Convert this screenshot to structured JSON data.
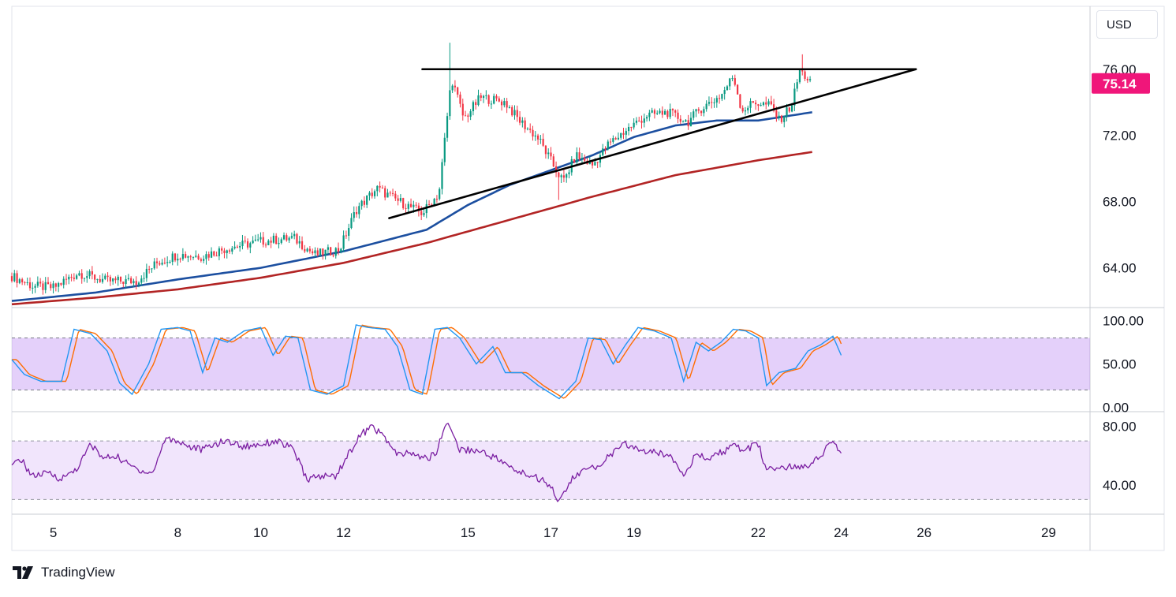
{
  "currency": "USD",
  "brand": "TradingView",
  "colors": {
    "up_candle": "#089981",
    "down_candle": "#f23645",
    "ema_fast": "#1c4fa0",
    "ema_slow": "#b22424",
    "trendline": "#000000",
    "last_price": "#f0167a",
    "stoch_k": "#2196f3",
    "stoch_d": "#ff6d00",
    "rsi": "#7b1fa2",
    "band_stoch": "rgba(170,110,240,0.32)",
    "band_rsi": "rgba(210,170,245,0.30)"
  },
  "chart_data": {
    "type": "candlestick",
    "instrument_currency": "USD",
    "last_price": "75.14",
    "x_ticks": [
      "5",
      "8",
      "10",
      "12",
      "15",
      "17",
      "19",
      "22",
      "24",
      "26",
      "29"
    ],
    "x_tick_days": [
      5,
      8,
      10,
      12,
      15,
      17,
      19,
      22,
      24,
      26,
      29
    ],
    "x_range_days": [
      4.0,
      30.0
    ],
    "price_axis": {
      "ticks": [
        "76.00",
        "72.00",
        "68.00",
        "64.00"
      ],
      "tick_values": [
        76,
        72,
        68,
        64
      ],
      "range": [
        61.6,
        79.8
      ]
    },
    "price_anchors": [
      [
        4.0,
        63.5
      ],
      [
        4.5,
        62.9
      ],
      [
        5.0,
        62.8
      ],
      [
        5.6,
        63.7
      ],
      [
        6.3,
        63.2
      ],
      [
        7.0,
        63.2
      ],
      [
        7.5,
        64.3
      ],
      [
        8.0,
        64.8
      ],
      [
        8.6,
        64.7
      ],
      [
        9.2,
        65.2
      ],
      [
        10.0,
        65.6
      ],
      [
        10.8,
        65.8
      ],
      [
        11.3,
        64.8
      ],
      [
        11.9,
        65.1
      ],
      [
        12.3,
        67.5
      ],
      [
        12.8,
        68.8
      ],
      [
        13.2,
        68.2
      ],
      [
        13.9,
        67.3
      ],
      [
        14.3,
        68.5
      ],
      [
        14.6,
        75.5
      ],
      [
        14.9,
        73.0
      ],
      [
        15.3,
        74.3
      ],
      [
        15.9,
        74.0
      ],
      [
        16.2,
        73.0
      ],
      [
        16.7,
        71.8
      ],
      [
        17.1,
        70.0
      ],
      [
        17.3,
        69.2
      ],
      [
        17.6,
        70.8
      ],
      [
        18.0,
        70.2
      ],
      [
        18.4,
        71.5
      ],
      [
        18.8,
        72.3
      ],
      [
        19.3,
        73.2
      ],
      [
        19.8,
        73.4
      ],
      [
        20.3,
        72.8
      ],
      [
        20.6,
        73.6
      ],
      [
        21.1,
        74.4
      ],
      [
        21.4,
        75.6
      ],
      [
        21.6,
        73.5
      ],
      [
        21.9,
        74.0
      ],
      [
        22.3,
        73.8
      ],
      [
        22.5,
        72.9
      ],
      [
        22.8,
        73.8
      ],
      [
        23.0,
        75.9
      ],
      [
        23.3,
        75.14
      ]
    ],
    "spikes": [
      [
        14.55,
        77.6
      ],
      [
        17.2,
        68.1
      ],
      [
        23.05,
        76.9
      ]
    ],
    "ema_fast": [
      [
        4.0,
        62.0
      ],
      [
        6.0,
        62.5
      ],
      [
        8.0,
        63.3
      ],
      [
        10.0,
        64.0
      ],
      [
        12.0,
        65.0
      ],
      [
        14.0,
        66.3
      ],
      [
        15.0,
        67.8
      ],
      [
        16.0,
        69.0
      ],
      [
        17.0,
        69.9
      ],
      [
        18.0,
        70.8
      ],
      [
        19.0,
        71.9
      ],
      [
        20.0,
        72.6
      ],
      [
        21.0,
        72.9
      ],
      [
        22.0,
        72.9
      ],
      [
        23.3,
        73.4
      ]
    ],
    "ema_slow": [
      [
        4.0,
        61.8
      ],
      [
        6.0,
        62.2
      ],
      [
        8.0,
        62.7
      ],
      [
        10.0,
        63.4
      ],
      [
        12.0,
        64.3
      ],
      [
        14.0,
        65.5
      ],
      [
        16.0,
        66.9
      ],
      [
        18.0,
        68.3
      ],
      [
        20.0,
        69.6
      ],
      [
        22.0,
        70.5
      ],
      [
        23.3,
        71.0
      ]
    ],
    "trendlines": [
      {
        "name": "resistance",
        "from": [
          13.9,
          76.0
        ],
        "to": [
          25.8,
          76.0
        ]
      },
      {
        "name": "support",
        "from": [
          13.1,
          67.0
        ],
        "to": [
          25.8,
          76.0
        ]
      }
    ],
    "stochastic": {
      "axis_ticks": [
        "100.00",
        "50.00",
        "0.00"
      ],
      "axis_values": [
        100,
        50,
        0
      ],
      "band": [
        20,
        80
      ],
      "range": [
        -5,
        115
      ],
      "k_anchors": [
        [
          4.0,
          55
        ],
        [
          4.3,
          38
        ],
        [
          4.7,
          30
        ],
        [
          5.2,
          30
        ],
        [
          5.5,
          90
        ],
        [
          5.9,
          85
        ],
        [
          6.3,
          65
        ],
        [
          6.6,
          28
        ],
        [
          6.9,
          15
        ],
        [
          7.3,
          50
        ],
        [
          7.6,
          90
        ],
        [
          8.0,
          92
        ],
        [
          8.3,
          88
        ],
        [
          8.6,
          40
        ],
        [
          8.9,
          80
        ],
        [
          9.2,
          75
        ],
        [
          9.6,
          88
        ],
        [
          10.0,
          92
        ],
        [
          10.3,
          60
        ],
        [
          10.6,
          82
        ],
        [
          10.9,
          80
        ],
        [
          11.2,
          20
        ],
        [
          11.6,
          15
        ],
        [
          12.0,
          25
        ],
        [
          12.3,
          95
        ],
        [
          12.6,
          92
        ],
        [
          13.0,
          90
        ],
        [
          13.3,
          70
        ],
        [
          13.6,
          20
        ],
        [
          13.9,
          15
        ],
        [
          14.2,
          90
        ],
        [
          14.5,
          92
        ],
        [
          14.8,
          80
        ],
        [
          15.2,
          50
        ],
        [
          15.6,
          70
        ],
        [
          15.9,
          40
        ],
        [
          16.3,
          40
        ],
        [
          16.7,
          25
        ],
        [
          17.2,
          10
        ],
        [
          17.6,
          30
        ],
        [
          17.9,
          80
        ],
        [
          18.2,
          78
        ],
        [
          18.5,
          50
        ],
        [
          18.8,
          72
        ],
        [
          19.1,
          92
        ],
        [
          19.5,
          88
        ],
        [
          19.9,
          80
        ],
        [
          20.2,
          30
        ],
        [
          20.5,
          75
        ],
        [
          20.8,
          65
        ],
        [
          21.1,
          75
        ],
        [
          21.4,
          90
        ],
        [
          21.7,
          88
        ],
        [
          22.0,
          80
        ],
        [
          22.2,
          25
        ],
        [
          22.5,
          40
        ],
        [
          22.9,
          45
        ],
        [
          23.2,
          65
        ],
        [
          23.5,
          72
        ],
        [
          23.8,
          82
        ],
        [
          24.0,
          60
        ]
      ]
    },
    "rsi": {
      "axis_ticks": [
        "80.00",
        "40.00"
      ],
      "axis_values": [
        80,
        40
      ],
      "band": [
        30,
        70
      ],
      "range": [
        20,
        90
      ],
      "anchors": [
        [
          4.0,
          52
        ],
        [
          4.2,
          58
        ],
        [
          4.5,
          46
        ],
        [
          4.9,
          48
        ],
        [
          5.2,
          44
        ],
        [
          5.6,
          52
        ],
        [
          5.9,
          68
        ],
        [
          6.2,
          58
        ],
        [
          6.5,
          60
        ],
        [
          6.8,
          54
        ],
        [
          7.1,
          50
        ],
        [
          7.4,
          48
        ],
        [
          7.7,
          72
        ],
        [
          8.0,
          70
        ],
        [
          8.3,
          66
        ],
        [
          8.6,
          64
        ],
        [
          8.9,
          68
        ],
        [
          9.2,
          70
        ],
        [
          9.6,
          66
        ],
        [
          10.0,
          68
        ],
        [
          10.4,
          70
        ],
        [
          10.8,
          64
        ],
        [
          11.1,
          44
        ],
        [
          11.5,
          46
        ],
        [
          11.8,
          46
        ],
        [
          12.1,
          60
        ],
        [
          12.4,
          74
        ],
        [
          12.7,
          80
        ],
        [
          13.0,
          72
        ],
        [
          13.3,
          60
        ],
        [
          13.6,
          62
        ],
        [
          13.9,
          58
        ],
        [
          14.2,
          60
        ],
        [
          14.5,
          84
        ],
        [
          14.8,
          64
        ],
        [
          15.1,
          64
        ],
        [
          15.4,
          62
        ],
        [
          15.7,
          58
        ],
        [
          16.0,
          52
        ],
        [
          16.3,
          48
        ],
        [
          16.6,
          46
        ],
        [
          17.0,
          40
        ],
        [
          17.2,
          28
        ],
        [
          17.5,
          44
        ],
        [
          17.8,
          50
        ],
        [
          18.1,
          52
        ],
        [
          18.4,
          60
        ],
        [
          18.8,
          68
        ],
        [
          19.1,
          64
        ],
        [
          19.5,
          62
        ],
        [
          19.9,
          60
        ],
        [
          20.2,
          48
        ],
        [
          20.5,
          60
        ],
        [
          20.8,
          58
        ],
        [
          21.1,
          62
        ],
        [
          21.4,
          66
        ],
        [
          21.7,
          64
        ],
        [
          22.0,
          68
        ],
        [
          22.2,
          50
        ],
        [
          22.5,
          52
        ],
        [
          22.9,
          52
        ],
        [
          23.2,
          54
        ],
        [
          23.5,
          60
        ],
        [
          23.8,
          70
        ],
        [
          24.0,
          62
        ]
      ]
    }
  }
}
